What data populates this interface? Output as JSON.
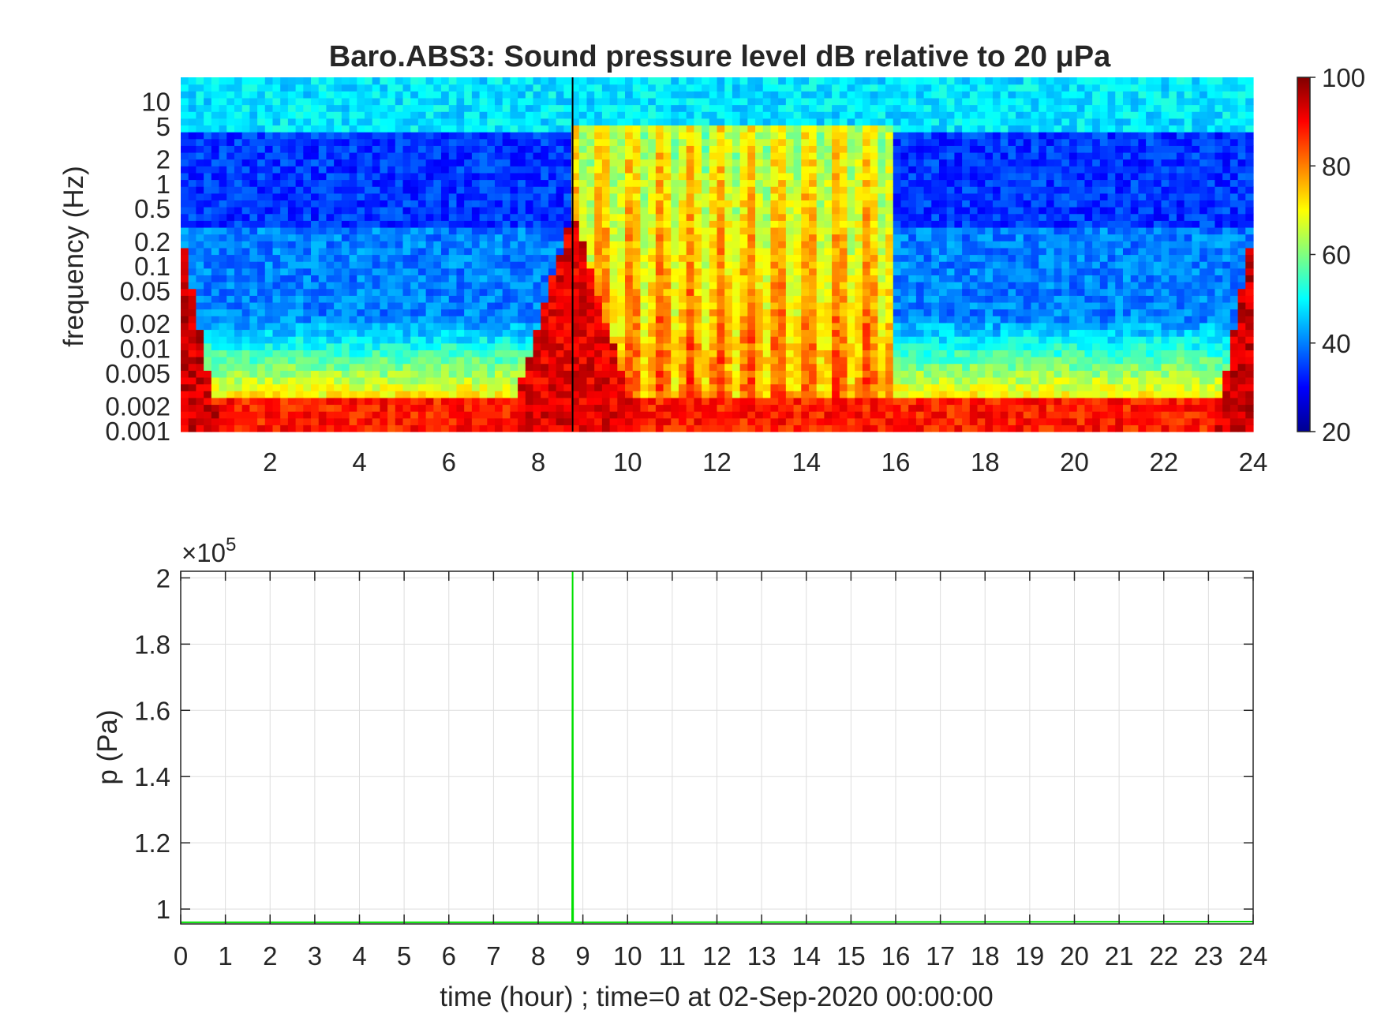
{
  "figure": {
    "title": "Baro.ABS3: Sound pressure level dB relative to 20 μPa"
  },
  "chart_data": [
    {
      "type": "heatmap",
      "title": "Baro.ABS3: Sound pressure level dB relative to 20 μPa",
      "xlabel": "",
      "ylabel": "frequency (Hz)",
      "xlim": [
        0,
        24
      ],
      "ylim": [
        0.001,
        20
      ],
      "y_scale": "log",
      "x_ticks": [
        2,
        4,
        6,
        8,
        10,
        12,
        14,
        16,
        18,
        20,
        22,
        24
      ],
      "y_ticks": [
        0.001,
        0.002,
        0.005,
        0.01,
        0.02,
        0.05,
        0.1,
        0.2,
        0.5,
        1,
        2,
        5,
        10
      ],
      "y_tick_labels": [
        "0.001",
        "0.002",
        "0.005",
        "0.01",
        "0.02",
        "0.05",
        "0.1",
        "0.2",
        "0.5",
        "1",
        "2",
        "5",
        "10"
      ],
      "colormap": "jet",
      "colorbar": {
        "range": [
          20,
          100
        ],
        "ticks": [
          20,
          40,
          60,
          80,
          100
        ]
      },
      "event_marker_time": 8.77,
      "description_values": {
        "quiet_band_level_db": 30,
        "top_band_level_db": 48,
        "low_frequency_level_db": 88,
        "active_period_hours": [
          8.8,
          16.0
        ]
      }
    },
    {
      "type": "line",
      "xlabel": "time (hour) ; time=0 at 02-Sep-2020 00:00:00",
      "ylabel": "p (Pa)",
      "xlim": [
        0,
        24
      ],
      "ylim": [
        95500,
        202000
      ],
      "y_exponent_label": "×10",
      "y_exponent_power": "5",
      "x_ticks": [
        0,
        1,
        2,
        3,
        4,
        5,
        6,
        7,
        8,
        9,
        10,
        11,
        12,
        13,
        14,
        15,
        16,
        17,
        18,
        19,
        20,
        21,
        22,
        23,
        24
      ],
      "y_ticks": [
        100000,
        120000,
        140000,
        160000,
        180000,
        200000
      ],
      "y_tick_labels": [
        "1",
        "1.2",
        "1.4",
        "1.6",
        "1.8",
        "2"
      ],
      "grid": true,
      "series": [
        {
          "color": "#00e000",
          "x": [
            0,
            8.76,
            8.77,
            8.78,
            24
          ],
          "y": [
            96000,
            96000,
            202000,
            96000,
            96200
          ]
        }
      ]
    }
  ]
}
